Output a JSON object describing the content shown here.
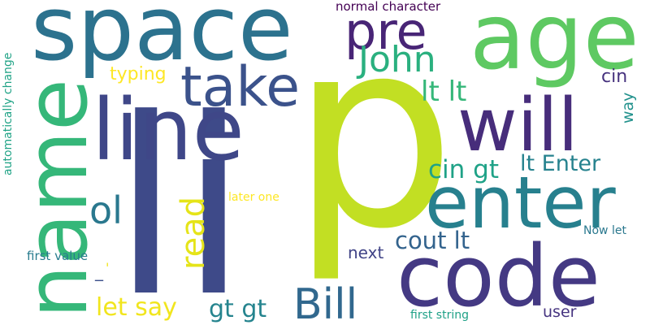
{
  "words": [
    {
      "key": "p",
      "text": "p",
      "color": "#c2df23"
    },
    {
      "key": "li",
      "text": "li",
      "color": "#3e4a89"
    },
    {
      "key": "space",
      "text": "space",
      "color": "#2c728e"
    },
    {
      "key": "age",
      "text": "age",
      "color": "#5ec962"
    },
    {
      "key": "name",
      "text": "name",
      "color": "#35b779"
    },
    {
      "key": "line",
      "text": "line",
      "color": "#3f4788"
    },
    {
      "key": "will",
      "text": "will",
      "color": "#472d7b"
    },
    {
      "key": "enter",
      "text": "enter",
      "color": "#27808e"
    },
    {
      "key": "code",
      "text": "code",
      "color": "#443983"
    },
    {
      "key": "pre",
      "text": "pre",
      "color": "#482576"
    },
    {
      "key": "john",
      "text": "John",
      "color": "#2ab07f"
    },
    {
      "key": "take",
      "text": "take",
      "color": "#3b528b"
    },
    {
      "key": "bill",
      "text": "Bill",
      "color": "#31688e"
    },
    {
      "key": "read",
      "text": "read",
      "color": "#e5e419"
    },
    {
      "key": "ol",
      "text": "ol",
      "color": "#2a788e"
    },
    {
      "key": "lt_lt",
      "text": "lt lt",
      "color": "#35b779"
    },
    {
      "key": "lt_enter",
      "text": "lt Enter",
      "color": "#26828e"
    },
    {
      "key": "cin_gt",
      "text": "cin gt",
      "color": "#1fa287"
    },
    {
      "key": "cout_lt",
      "text": "cout lt",
      "color": "#33638d"
    },
    {
      "key": "let_say",
      "text": "let say",
      "color": "#f1e51d"
    },
    {
      "key": "gt_gt",
      "text": "gt gt",
      "color": "#25848e"
    },
    {
      "key": "typing",
      "text": "typing",
      "color": "#fde725"
    },
    {
      "key": "cin",
      "text": "cin",
      "color": "#46327e"
    },
    {
      "key": "way",
      "text": "way",
      "color": "#21918c"
    },
    {
      "key": "next",
      "text": "next",
      "color": "#414487"
    },
    {
      "key": "normal_character",
      "text": "normal character",
      "color": "#440154"
    },
    {
      "key": "automatically_change",
      "text": "automatically change",
      "color": "#20a386"
    },
    {
      "key": "first_value",
      "text": "first value",
      "color": "#287c8e"
    },
    {
      "key": "later_one",
      "text": "later one",
      "color": "#fde725"
    },
    {
      "key": "now_let",
      "text": "Now let",
      "color": "#2a788e"
    },
    {
      "key": "first_string",
      "text": "first string",
      "color": "#1fa187"
    },
    {
      "key": "user",
      "text": "user",
      "color": "#463480"
    },
    {
      "key": "underscore",
      "text": "_",
      "color": "#3c508b"
    },
    {
      "key": "quote",
      "text": "'",
      "color": "#f1e51d"
    }
  ]
}
